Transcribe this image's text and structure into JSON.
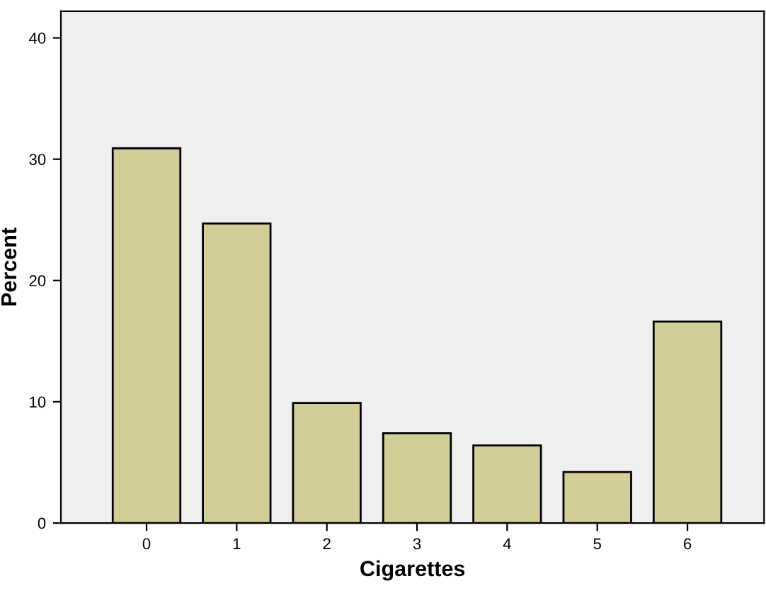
{
  "chart_data": {
    "type": "bar",
    "xlabel": "Cigarettes",
    "ylabel": "Percent",
    "categories": [
      "0",
      "1",
      "2",
      "3",
      "4",
      "5",
      "6"
    ],
    "values": [
      30.9,
      24.7,
      9.9,
      7.4,
      6.4,
      4.2,
      16.6
    ],
    "color": "#d3ce98",
    "ylim": [
      0,
      42.2
    ],
    "yticks": [
      0,
      10,
      20,
      30,
      40
    ],
    "grid": false
  }
}
